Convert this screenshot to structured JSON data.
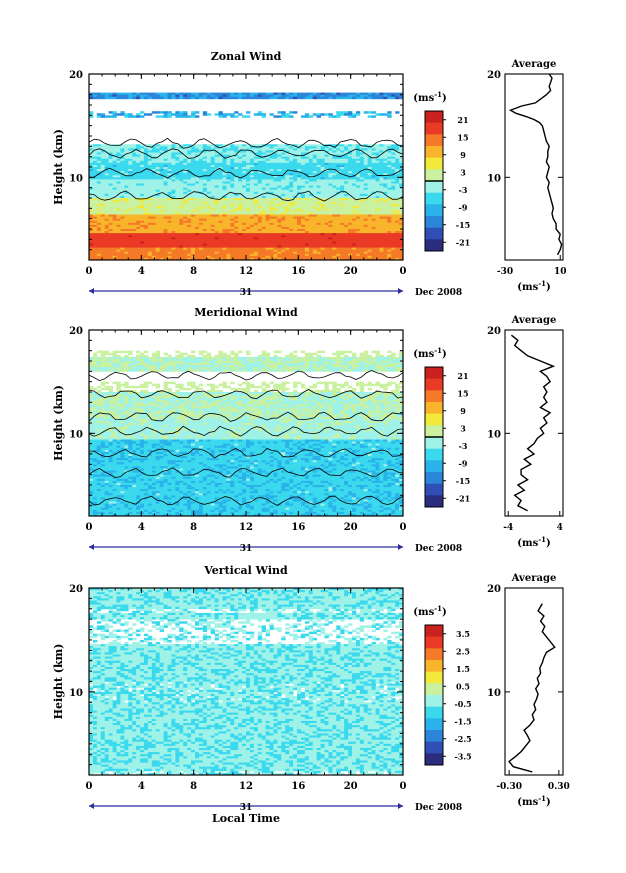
{
  "figure": {
    "xaxis": {
      "ticks": [
        "0",
        "4",
        "8",
        "12",
        "16",
        "20",
        "0"
      ],
      "day_label": "31",
      "month_label": "Dec 2008",
      "label": "Local Time"
    }
  },
  "chart_data": [
    {
      "type": "heatmap",
      "title": "Zonal Wind",
      "ylabel": "Height (km)",
      "ylim": [
        2,
        20
      ],
      "yticks": [
        "10",
        "20"
      ],
      "xlim": [
        0,
        24
      ],
      "xticks": [
        "0",
        "4",
        "8",
        "12",
        "16",
        "20",
        "0"
      ],
      "colorbar": {
        "unit_label": "(ms",
        "unit_exp": "-1",
        "tick_labels": [
          "21",
          "15",
          "9",
          "3",
          "-3",
          "-9",
          "-15",
          "-21"
        ],
        "range": [
          -24,
          24
        ],
        "zero_line": true
      },
      "profile": {
        "title": "Average",
        "xticks": [
          "-30",
          "10"
        ],
        "xlim": [
          -30,
          12
        ],
        "ylim": [
          2,
          20
        ],
        "yticks": [
          "10",
          "20"
        ],
        "xlabel": "(ms",
        "xlabel_exp": "-1",
        "x": [
          8,
          10,
          11,
          9,
          10,
          7,
          7,
          5,
          4,
          5,
          4,
          3,
          2,
          1,
          2,
          0,
          1,
          2,
          0,
          1,
          1,
          2,
          0,
          -1,
          -2,
          -3,
          -5,
          -9,
          -15,
          -22,
          -26,
          -18,
          -8,
          -4,
          0,
          3,
          2,
          3,
          4,
          2
        ],
        "height": [
          2.5,
          3,
          3.5,
          4,
          4.5,
          5,
          5.5,
          6,
          6.5,
          7,
          7.5,
          8,
          8.5,
          9,
          9.5,
          10,
          10.5,
          11,
          11.5,
          12,
          12.5,
          13,
          13.5,
          14,
          14.5,
          15,
          15.3,
          15.6,
          15.9,
          16.2,
          16.5,
          16.9,
          17.2,
          17.6,
          18,
          18.4,
          18.8,
          19.2,
          19.6,
          20
        ]
      }
    },
    {
      "type": "heatmap",
      "title": "Meridional Wind",
      "ylabel": "Height (km)",
      "ylim": [
        2,
        20
      ],
      "yticks": [
        "10",
        "20"
      ],
      "xlim": [
        0,
        24
      ],
      "xticks": [
        "0",
        "4",
        "8",
        "12",
        "16",
        "20",
        "0"
      ],
      "colorbar": {
        "unit_label": "(ms",
        "unit_exp": "-1",
        "tick_labels": [
          "21",
          "15",
          "9",
          "3",
          "-3",
          "-9",
          "-15",
          "-21"
        ],
        "range": [
          -24,
          24
        ],
        "zero_line": true
      },
      "profile": {
        "title": "Average",
        "xticks": [
          "-4",
          "4"
        ],
        "xlim": [
          -4.5,
          4.5
        ],
        "ylim": [
          2,
          20
        ],
        "yticks": [
          "10",
          "20"
        ],
        "xlabel": "(ms",
        "xlabel_exp": "-1",
        "x": [
          -1,
          -2.5,
          -2,
          -3,
          -1.5,
          -2.5,
          -1,
          -2,
          -2,
          -0.5,
          -1.5,
          0,
          -1,
          0,
          0.5,
          1.5,
          1,
          2,
          1.5,
          2.5,
          1,
          2,
          1.5,
          2,
          1.5,
          2.5,
          2,
          1,
          3,
          1,
          -1,
          -2,
          -3,
          -2.5,
          -3.5
        ],
        "height": [
          2.5,
          3,
          3.5,
          4,
          4.5,
          5,
          5.5,
          6,
          6.5,
          7,
          7.5,
          8,
          8.5,
          9,
          9.5,
          10,
          10.5,
          11,
          11.5,
          12,
          12.5,
          13,
          13.5,
          14,
          14.5,
          15,
          15.5,
          16,
          16.5,
          17,
          17.5,
          18,
          18.5,
          19,
          19.5
        ]
      }
    },
    {
      "type": "heatmap",
      "title": "Vertical Wind",
      "ylabel": "Height (km)",
      "ylim": [
        2,
        20
      ],
      "yticks": [
        "10",
        "20"
      ],
      "xlim": [
        0,
        24
      ],
      "xticks": [
        "0",
        "4",
        "8",
        "12",
        "16",
        "20",
        "0"
      ],
      "colorbar": {
        "unit_label": "(ms",
        "unit_exp": "-1",
        "tick_labels": [
          "3.5",
          "2.5",
          "1.5",
          "0.5",
          "-0.5",
          "-1.5",
          "-2.5",
          "-3.5"
        ],
        "range": [
          -4,
          4
        ],
        "zero_line": false
      },
      "profile": {
        "title": "Average",
        "xticks": [
          "-0.30",
          "0.30"
        ],
        "xlim": [
          -0.35,
          0.35
        ],
        "ylim": [
          2,
          20
        ],
        "yticks": [
          "10",
          "20"
        ],
        "xlabel": "(ms",
        "xlabel_exp": "-1",
        "x": [
          -0.02,
          -0.25,
          -0.3,
          -0.22,
          -0.15,
          -0.1,
          -0.05,
          -0.08,
          -0.12,
          -0.05,
          0,
          -0.02,
          0.02,
          0,
          0.03,
          0.05,
          0.02,
          0.06,
          0.04,
          0.08,
          0.07,
          0.1,
          0.12,
          0.15,
          0.25,
          0.2,
          0.15,
          0.1,
          0.13,
          0.08,
          0.12,
          0.05,
          0.1
        ],
        "height": [
          2.3,
          2.8,
          3.3,
          3.8,
          4.3,
          4.8,
          5.3,
          5.8,
          6.3,
          6.8,
          7.3,
          7.8,
          8.3,
          8.8,
          9.3,
          9.8,
          10.3,
          10.8,
          11.3,
          11.8,
          12.3,
          12.8,
          13.3,
          13.8,
          14.3,
          14.8,
          15.3,
          15.8,
          16.3,
          16.8,
          17.3,
          17.8,
          18.5
        ]
      }
    }
  ]
}
